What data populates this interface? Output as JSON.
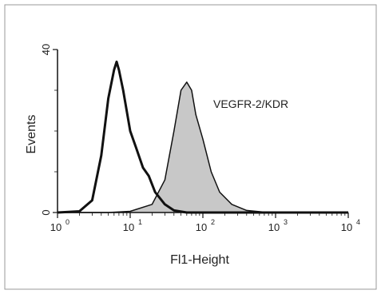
{
  "chart_data": {
    "type": "area",
    "xlabel": "Fl1-Height",
    "ylabel": "Events",
    "x_scale": "log",
    "xlim": [
      1,
      10000
    ],
    "ylim": [
      0,
      40
    ],
    "x_tick_labels": [
      {
        "base": "10",
        "exp": "0",
        "value": 1
      },
      {
        "base": "10",
        "exp": "1",
        "value": 10
      },
      {
        "base": "10",
        "exp": "2",
        "value": 100
      },
      {
        "base": "10",
        "exp": "3",
        "value": 1000
      },
      {
        "base": "10",
        "exp": "4",
        "value": 10000
      }
    ],
    "y_tick_labels": [
      {
        "label": "0",
        "value": 0
      },
      {
        "label": "40",
        "value": 40
      }
    ],
    "annotations": [
      {
        "text": "VEGFR-2/KDR",
        "x": 150,
        "y": 31
      }
    ],
    "grid": false,
    "series": [
      {
        "style": "outline",
        "color": "#111111",
        "points": [
          [
            1,
            0
          ],
          [
            2,
            0.3
          ],
          [
            3,
            3
          ],
          [
            4,
            14
          ],
          [
            5,
            28
          ],
          [
            6,
            35
          ],
          [
            6.5,
            37
          ],
          [
            7,
            35
          ],
          [
            8,
            30
          ],
          [
            10,
            20
          ],
          [
            12,
            16
          ],
          [
            15,
            11
          ],
          [
            18,
            9
          ],
          [
            22,
            5
          ],
          [
            30,
            2
          ],
          [
            40,
            0.5
          ],
          [
            60,
            0
          ],
          [
            100,
            0
          ],
          [
            1000,
            0
          ],
          [
            10000,
            0
          ]
        ]
      },
      {
        "name": "VEGFR-2/KDR",
        "style": "filled",
        "color": "#111111",
        "fill": "#c8c8c8",
        "points": [
          [
            1,
            0
          ],
          [
            5,
            0
          ],
          [
            10,
            0.3
          ],
          [
            20,
            2
          ],
          [
            30,
            8
          ],
          [
            40,
            20
          ],
          [
            50,
            30
          ],
          [
            60,
            32
          ],
          [
            70,
            30
          ],
          [
            80,
            24
          ],
          [
            100,
            18
          ],
          [
            130,
            10
          ],
          [
            170,
            5
          ],
          [
            250,
            2
          ],
          [
            400,
            0.5
          ],
          [
            800,
            0
          ],
          [
            10000,
            0
          ]
        ]
      }
    ]
  }
}
